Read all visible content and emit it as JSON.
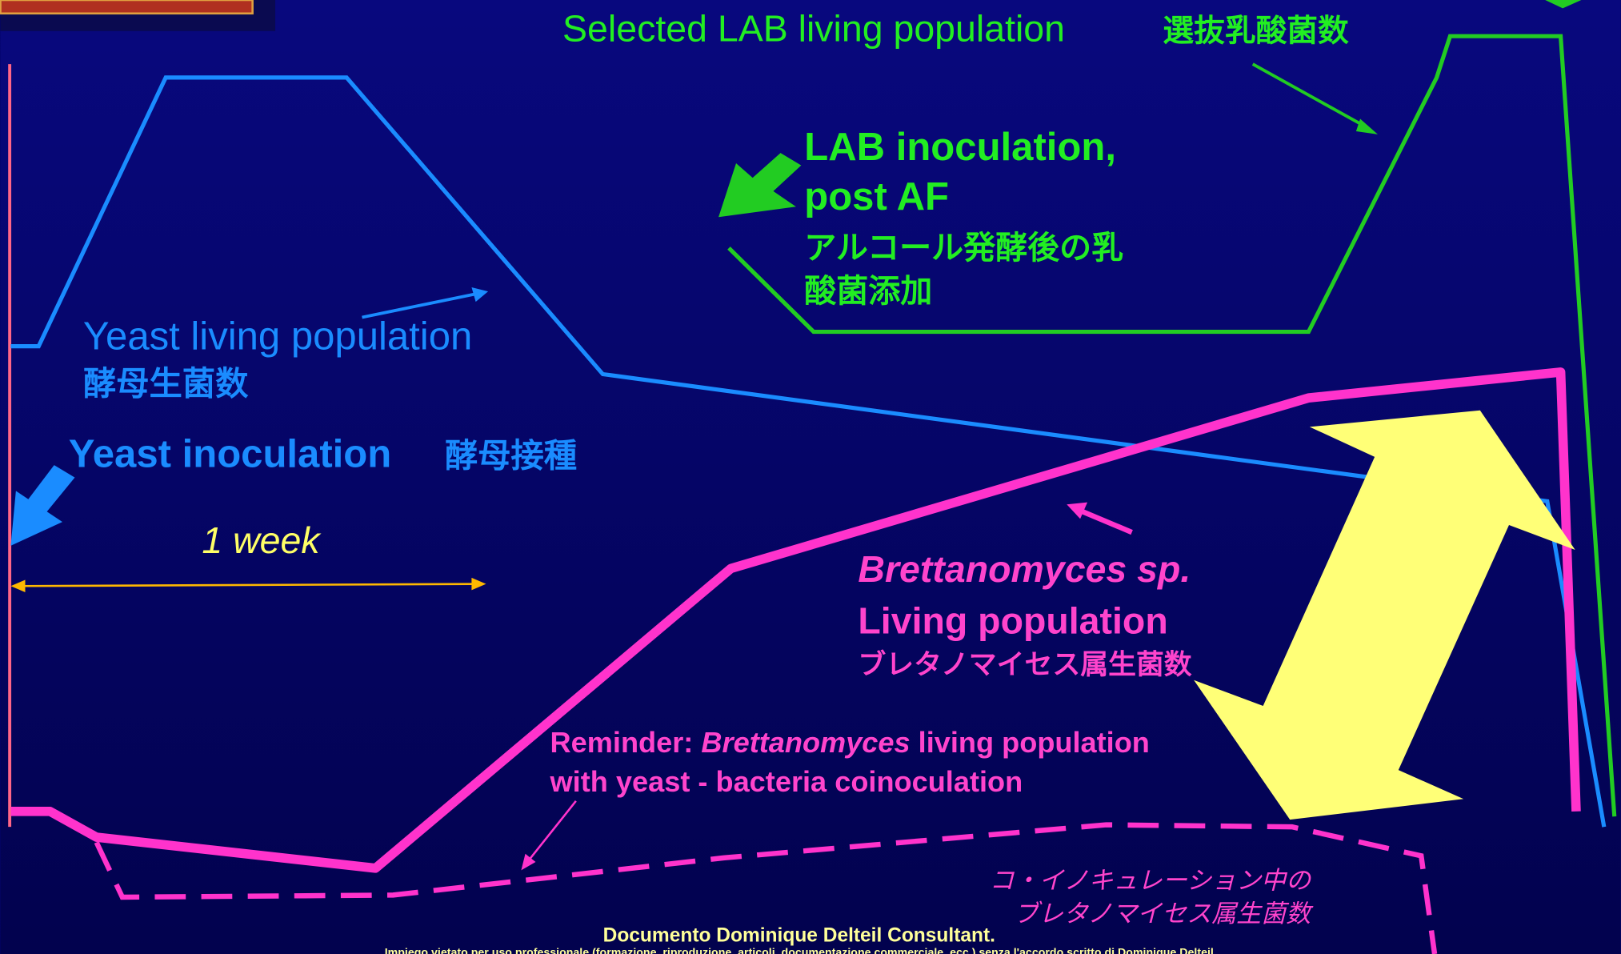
{
  "lab_label": {
    "en": "Selected LAB living population",
    "ja": "選抜乳酸菌数"
  },
  "lab_inoculation": {
    "line1": "LAB inoculation,",
    "line2": "post AF",
    "ja1": "アルコール発酵後の乳",
    "ja2": "酸菌添加"
  },
  "yeast_label": {
    "en": "Yeast living population",
    "ja": "酵母生菌数"
  },
  "yeast_inoculation": {
    "en": "Yeast inoculation",
    "ja": "酵母接種"
  },
  "duration": "1 week",
  "brett_label": {
    "line1": "Brettanomyces sp.",
    "line2": "Living population",
    "ja": "ブレタノマイセス属生菌数"
  },
  "reminder": {
    "prefix": "Reminder: ",
    "italic": "Brettanomyces",
    "suffix": " living population",
    "line2": "with yeast - bacteria coinoculation"
  },
  "coinoculation_ja": {
    "line1": "コ・イノキュレーション中の",
    "line2": "ブレタノマイセス属生菌数"
  },
  "footer": {
    "credit": "Documento Dominique Delteil Consultant.",
    "notice": "Impiego vietato per uso professionale (formazione, riproduzione, articoli, documentazione commerciale, ecc.) senza l'accordo scritto di Dominique Delteil"
  }
}
